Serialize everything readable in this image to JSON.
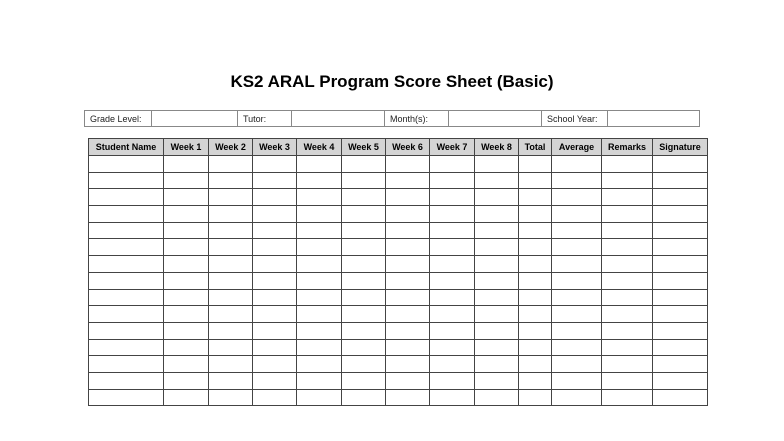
{
  "title": "KS2 ARAL Program Score Sheet (Basic)",
  "info": {
    "grade_level": "Grade Level:",
    "tutor": "Tutor:",
    "months": "Month(s):",
    "school_year": "School Year:"
  },
  "columns": [
    "Student Name",
    "Week 1",
    "Week 2",
    "Week 3",
    "Week 4",
    "Week 5",
    "Week 6",
    "Week 7",
    "Week 8",
    "Total",
    "Average",
    "Remarks",
    "Signature"
  ],
  "row_count": 15
}
